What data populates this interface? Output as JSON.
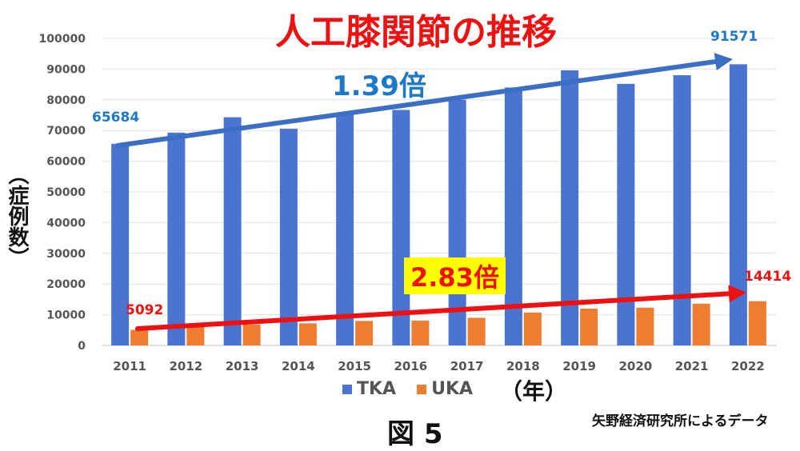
{
  "title": "人工膝関節の推移",
  "y_axis_label": "（症例数）",
  "x_axis_unit": "（年）",
  "figure_label": "図 5",
  "source": "矢野経済研究所によるデータ",
  "annotations": {
    "tka_growth": "1.39倍",
    "uka_growth": "2.83倍",
    "tka_start": "65684",
    "tka_end": "91571",
    "uka_start": "5092",
    "uka_end": "14414"
  },
  "colors": {
    "tka": "#4a74cf",
    "uka": "#ee7d31",
    "tka_arrow": "#3b6fc4",
    "uka_arrow": "#ee1111"
  },
  "chart_data": {
    "type": "bar",
    "categories": [
      "2011",
      "2012",
      "2013",
      "2014",
      "2015",
      "2016",
      "2017",
      "2018",
      "2019",
      "2020",
      "2021",
      "2022"
    ],
    "series": [
      {
        "name": "TKA",
        "values": [
          65684,
          69300,
          74300,
          70600,
          75400,
          76700,
          80000,
          84000,
          89600,
          85200,
          88000,
          91571
        ]
      },
      {
        "name": "UKA",
        "values": [
          5092,
          6100,
          6800,
          7200,
          8000,
          8100,
          9000,
          10700,
          12000,
          12300,
          13600,
          14414
        ]
      }
    ],
    "ylim": [
      0,
      100000
    ],
    "yticks": [
      0,
      10000,
      20000,
      30000,
      40000,
      50000,
      60000,
      70000,
      80000,
      90000,
      100000
    ],
    "grid": true,
    "legend": "bottom"
  }
}
